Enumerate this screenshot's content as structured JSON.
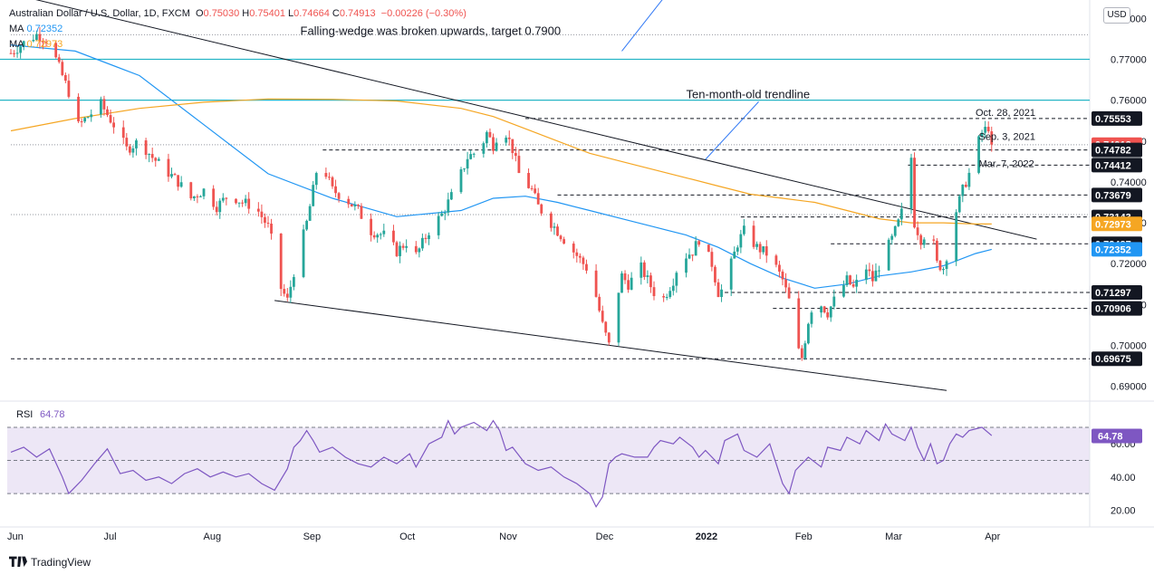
{
  "header": {
    "symbol": "Australian Dollar / U.S. Dollar, 1D, FXCM",
    "ohlc": [
      {
        "k": "O",
        "v": "0.75030"
      },
      {
        "k": "H",
        "v": "0.75401"
      },
      {
        "k": "L",
        "v": "0.74664"
      },
      {
        "k": "C",
        "v": "0.74913"
      }
    ],
    "change": "−0.00226 (−0.30%)",
    "ma1": {
      "label": "MA",
      "value": "0.72352"
    },
    "ma2": {
      "label": "MA",
      "value": "0.72973"
    }
  },
  "currency_button": "USD",
  "footer": {
    "brand": "TradingView"
  },
  "colors": {
    "up": "#26a69a",
    "down": "#ef5350",
    "ma_fast": "#2196f3",
    "ma_slow": "#f5a623",
    "hline": "#26b5c6",
    "rsi_line": "#7e57c2",
    "rsi_band": "#ede7f6"
  },
  "chart_data": {
    "type": "candlestick",
    "price_axis": {
      "min": 0.6875,
      "max": 0.7845,
      "ticks": [
        "0.78000",
        "0.77000",
        "0.76000",
        "0.75000",
        "0.74000",
        "0.73000",
        "0.72000",
        "0.71000",
        "0.70000",
        "0.69000"
      ],
      "tick_values": [
        0.78,
        0.77,
        0.76,
        0.75,
        0.74,
        0.73,
        0.72,
        0.71,
        0.7,
        0.69
      ]
    },
    "time_axis": {
      "labels": [
        "Jun",
        "Jul",
        "Aug",
        "Sep",
        "Oct",
        "Nov",
        "Dec",
        "2022",
        "Feb",
        "Mar",
        "Apr"
      ],
      "label_days": [
        0,
        30,
        61,
        92,
        122,
        153,
        183,
        214,
        245,
        273,
        304
      ]
    },
    "candles_close_path": [
      [
        0,
        0.7715
      ],
      [
        4,
        0.774
      ],
      [
        8,
        0.776
      ],
      [
        12,
        0.7745
      ],
      [
        14,
        0.77
      ],
      [
        18,
        0.762
      ],
      [
        20,
        0.753
      ],
      [
        24,
        0.756
      ],
      [
        28,
        0.759
      ],
      [
        32,
        0.754
      ],
      [
        36,
        0.748
      ],
      [
        40,
        0.75
      ],
      [
        44,
        0.746
      ],
      [
        48,
        0.743
      ],
      [
        52,
        0.74
      ],
      [
        56,
        0.736
      ],
      [
        60,
        0.738
      ],
      [
        64,
        0.734
      ],
      [
        68,
        0.737
      ],
      [
        72,
        0.735
      ],
      [
        76,
        0.734
      ],
      [
        80,
        0.729
      ],
      [
        82,
        0.723
      ],
      [
        84,
        0.714
      ],
      [
        86,
        0.711
      ],
      [
        88,
        0.718
      ],
      [
        90,
        0.724
      ],
      [
        92,
        0.73
      ],
      [
        94,
        0.738
      ],
      [
        96,
        0.747
      ],
      [
        98,
        0.742
      ],
      [
        100,
        0.738
      ],
      [
        104,
        0.736
      ],
      [
        108,
        0.733
      ],
      [
        112,
        0.728
      ],
      [
        116,
        0.727
      ],
      [
        118,
        0.725
      ],
      [
        120,
        0.723
      ],
      [
        124,
        0.726
      ],
      [
        126,
        0.722
      ],
      [
        130,
        0.728
      ],
      [
        134,
        0.732
      ],
      [
        138,
        0.738
      ],
      [
        142,
        0.746
      ],
      [
        146,
        0.748
      ],
      [
        148,
        0.752
      ],
      [
        150,
        0.749
      ],
      [
        152,
        0.753
      ],
      [
        154,
        0.752
      ],
      [
        156,
        0.748
      ],
      [
        158,
        0.742
      ],
      [
        162,
        0.738
      ],
      [
        164,
        0.734
      ],
      [
        168,
        0.73
      ],
      [
        172,
        0.726
      ],
      [
        176,
        0.722
      ],
      [
        180,
        0.718
      ],
      [
        182,
        0.712
      ],
      [
        184,
        0.705
      ],
      [
        186,
        0.7
      ],
      [
        188,
        0.71
      ],
      [
        190,
        0.717
      ],
      [
        192,
        0.715
      ],
      [
        196,
        0.719
      ],
      [
        200,
        0.713
      ],
      [
        202,
        0.71
      ],
      [
        206,
        0.716
      ],
      [
        208,
        0.721
      ],
      [
        212,
        0.723
      ],
      [
        214,
        0.726
      ],
      [
        218,
        0.72
      ],
      [
        220,
        0.713
      ],
      [
        222,
        0.714
      ],
      [
        224,
        0.72
      ],
      [
        226,
        0.725
      ],
      [
        228,
        0.728
      ],
      [
        232,
        0.724
      ],
      [
        236,
        0.722
      ],
      [
        240,
        0.716
      ],
      [
        242,
        0.711
      ],
      [
        244,
        0.7
      ],
      [
        246,
        0.697
      ],
      [
        248,
        0.706
      ],
      [
        250,
        0.712
      ],
      [
        254,
        0.708
      ],
      [
        256,
        0.711
      ],
      [
        260,
        0.716
      ],
      [
        262,
        0.714
      ],
      [
        266,
        0.719
      ],
      [
        268,
        0.716
      ],
      [
        272,
        0.723
      ],
      [
        274,
        0.726
      ],
      [
        276,
        0.73
      ],
      [
        278,
        0.735
      ],
      [
        280,
        0.746
      ],
      [
        281,
        0.73
      ],
      [
        283,
        0.726
      ],
      [
        286,
        0.729
      ],
      [
        288,
        0.72
      ],
      [
        290,
        0.719
      ],
      [
        292,
        0.725
      ],
      [
        294,
        0.733
      ],
      [
        296,
        0.738
      ],
      [
        298,
        0.742
      ],
      [
        300,
        0.748
      ],
      [
        302,
        0.752
      ],
      [
        304,
        0.7535
      ],
      [
        305,
        0.7491
      ]
    ],
    "last_price": 0.74913,
    "moving_averages": [
      {
        "name": "MA",
        "value": "0.72352",
        "color": "#2196f3",
        "points": [
          [
            0,
            0.7735
          ],
          [
            20,
            0.772
          ],
          [
            40,
            0.766
          ],
          [
            60,
            0.754
          ],
          [
            80,
            0.742
          ],
          [
            100,
            0.736
          ],
          [
            120,
            0.7315
          ],
          [
            140,
            0.733
          ],
          [
            150,
            0.736
          ],
          [
            160,
            0.7365
          ],
          [
            170,
            0.735
          ],
          [
            180,
            0.733
          ],
          [
            190,
            0.731
          ],
          [
            200,
            0.729
          ],
          [
            210,
            0.727
          ],
          [
            220,
            0.724
          ],
          [
            230,
            0.72
          ],
          [
            240,
            0.7165
          ],
          [
            250,
            0.714
          ],
          [
            260,
            0.715
          ],
          [
            270,
            0.717
          ],
          [
            280,
            0.718
          ],
          [
            290,
            0.7195
          ],
          [
            300,
            0.7225
          ],
          [
            305,
            0.7235
          ]
        ]
      },
      {
        "name": "MA",
        "value": "0.72973",
        "color": "#f5a623",
        "points": [
          [
            0,
            0.7525
          ],
          [
            20,
            0.7555
          ],
          [
            40,
            0.758
          ],
          [
            60,
            0.7595
          ],
          [
            80,
            0.7603
          ],
          [
            100,
            0.7602
          ],
          [
            120,
            0.7598
          ],
          [
            140,
            0.758
          ],
          [
            150,
            0.756
          ],
          [
            160,
            0.753
          ],
          [
            170,
            0.75
          ],
          [
            180,
            0.747
          ],
          [
            190,
            0.745
          ],
          [
            200,
            0.743
          ],
          [
            210,
            0.741
          ],
          [
            220,
            0.739
          ],
          [
            230,
            0.737
          ],
          [
            240,
            0.736
          ],
          [
            250,
            0.735
          ],
          [
            260,
            0.733
          ],
          [
            270,
            0.731
          ],
          [
            280,
            0.73
          ],
          [
            290,
            0.73
          ],
          [
            300,
            0.7297
          ],
          [
            305,
            0.7297
          ]
        ]
      }
    ],
    "horizontal_lines": [
      {
        "value": 0.77,
        "label": "0.77000"
      },
      {
        "value": 0.76,
        "label": "0.76000"
      }
    ],
    "price_tags": [
      {
        "value": 0.75553,
        "label": "0.75553",
        "style": "dark"
      },
      {
        "value": 0.74913,
        "label": "0.74913",
        "style": "red"
      },
      {
        "value": 0.74782,
        "label": "0.74782",
        "style": "dark"
      },
      {
        "value": 0.74412,
        "label": "0.74412",
        "style": "dark"
      },
      {
        "value": 0.73679,
        "label": "0.73679",
        "style": "dark"
      },
      {
        "value": 0.73143,
        "label": "0.73143",
        "style": "dark"
      },
      {
        "value": 0.72973,
        "label": "0.72973",
        "style": "orange"
      },
      {
        "value": 0.72487,
        "label": "0.72487",
        "style": "dark"
      },
      {
        "value": 0.72352,
        "label": "0.72352",
        "style": "blue"
      },
      {
        "value": 0.71297,
        "label": "0.71297",
        "style": "dark"
      },
      {
        "value": 0.70906,
        "label": "0.70906",
        "style": "dark"
      },
      {
        "value": 0.69675,
        "label": "0.69675",
        "style": "dark"
      }
    ],
    "dashed_levels": [
      {
        "value": 0.75553,
        "from_day": 160
      },
      {
        "value": 0.74782,
        "from_day": 97
      },
      {
        "value": 0.74412,
        "from_day": 279
      },
      {
        "value": 0.73679,
        "from_day": 170
      },
      {
        "value": 0.73143,
        "from_day": 227
      },
      {
        "value": 0.72487,
        "from_day": 255
      },
      {
        "value": 0.71297,
        "from_day": 222
      },
      {
        "value": 0.70906,
        "from_day": 237
      },
      {
        "value": 0.69675,
        "from_day": 0
      }
    ],
    "dotted_levels": [
      {
        "value": 0.776,
        "from_day": 0
      },
      {
        "value": 0.7491,
        "from_day": 0
      },
      {
        "value": 0.732,
        "from_day": 0
      }
    ],
    "trendlines": [
      {
        "name": "wedge-upper",
        "from": [
          -5,
          0.787
        ],
        "to": [
          319,
          0.726
        ]
      },
      {
        "name": "wedge-lower",
        "from": [
          82,
          0.711
        ],
        "to": [
          291,
          0.689
        ]
      }
    ],
    "annotations": [
      {
        "text": "Falling-wedge was broken upwards, target 0.7900",
        "day": 90,
        "value": 0.776
      },
      {
        "text": "Ten-month-old trendline",
        "day": 210,
        "value": 0.7605,
        "arrow_to": [
          216,
          0.7455
        ]
      },
      {
        "text": "Oct. 28, 2021",
        "day": 300,
        "value": 0.7562
      },
      {
        "text": "Sep. 3, 2021",
        "day": 301,
        "value": 0.7503
      },
      {
        "text": "Mar. 7, 2022",
        "day": 301,
        "value": 0.7436
      }
    ],
    "rsi": {
      "label": "RSI",
      "value": "64.78",
      "axis": {
        "min": 12,
        "max": 82,
        "ticks": [
          "60.00",
          "40.00",
          "20.00"
        ],
        "tick_values": [
          60,
          40,
          20
        ]
      },
      "band": [
        30,
        70
      ],
      "mid": 50,
      "points": [
        [
          0,
          55
        ],
        [
          4,
          58
        ],
        [
          8,
          52
        ],
        [
          12,
          57
        ],
        [
          16,
          40
        ],
        [
          18,
          30
        ],
        [
          22,
          38
        ],
        [
          26,
          48
        ],
        [
          30,
          57
        ],
        [
          34,
          42
        ],
        [
          38,
          44
        ],
        [
          42,
          38
        ],
        [
          46,
          40
        ],
        [
          50,
          36
        ],
        [
          54,
          42
        ],
        [
          58,
          45
        ],
        [
          62,
          40
        ],
        [
          66,
          43
        ],
        [
          70,
          40
        ],
        [
          74,
          42
        ],
        [
          78,
          36
        ],
        [
          82,
          32
        ],
        [
          86,
          45
        ],
        [
          88,
          58
        ],
        [
          90,
          62
        ],
        [
          92,
          68
        ],
        [
          94,
          62
        ],
        [
          96,
          55
        ],
        [
          100,
          58
        ],
        [
          104,
          52
        ],
        [
          108,
          48
        ],
        [
          112,
          46
        ],
        [
          116,
          52
        ],
        [
          120,
          48
        ],
        [
          124,
          54
        ],
        [
          126,
          46
        ],
        [
          130,
          60
        ],
        [
          134,
          64
        ],
        [
          136,
          74
        ],
        [
          138,
          66
        ],
        [
          140,
          70
        ],
        [
          144,
          73
        ],
        [
          148,
          68
        ],
        [
          150,
          74
        ],
        [
          152,
          68
        ],
        [
          154,
          56
        ],
        [
          156,
          58
        ],
        [
          160,
          48
        ],
        [
          164,
          44
        ],
        [
          168,
          46
        ],
        [
          172,
          40
        ],
        [
          176,
          36
        ],
        [
          180,
          30
        ],
        [
          182,
          22
        ],
        [
          184,
          28
        ],
        [
          186,
          48
        ],
        [
          188,
          52
        ],
        [
          190,
          54
        ],
        [
          194,
          52
        ],
        [
          198,
          52
        ],
        [
          200,
          58
        ],
        [
          202,
          62
        ],
        [
          206,
          60
        ],
        [
          208,
          64
        ],
        [
          212,
          58
        ],
        [
          214,
          52
        ],
        [
          216,
          56
        ],
        [
          220,
          48
        ],
        [
          222,
          62
        ],
        [
          226,
          66
        ],
        [
          228,
          56
        ],
        [
          232,
          52
        ],
        [
          236,
          60
        ],
        [
          238,
          48
        ],
        [
          240,
          36
        ],
        [
          242,
          30
        ],
        [
          244,
          44
        ],
        [
          248,
          52
        ],
        [
          252,
          46
        ],
        [
          254,
          58
        ],
        [
          258,
          56
        ],
        [
          260,
          64
        ],
        [
          264,
          60
        ],
        [
          266,
          68
        ],
        [
          270,
          62
        ],
        [
          272,
          72
        ],
        [
          274,
          66
        ],
        [
          278,
          62
        ],
        [
          280,
          70
        ],
        [
          282,
          58
        ],
        [
          284,
          50
        ],
        [
          286,
          60
        ],
        [
          288,
          48
        ],
        [
          290,
          50
        ],
        [
          292,
          60
        ],
        [
          294,
          66
        ],
        [
          296,
          64
        ],
        [
          298,
          68
        ],
        [
          302,
          70
        ],
        [
          305,
          65
        ]
      ]
    }
  }
}
